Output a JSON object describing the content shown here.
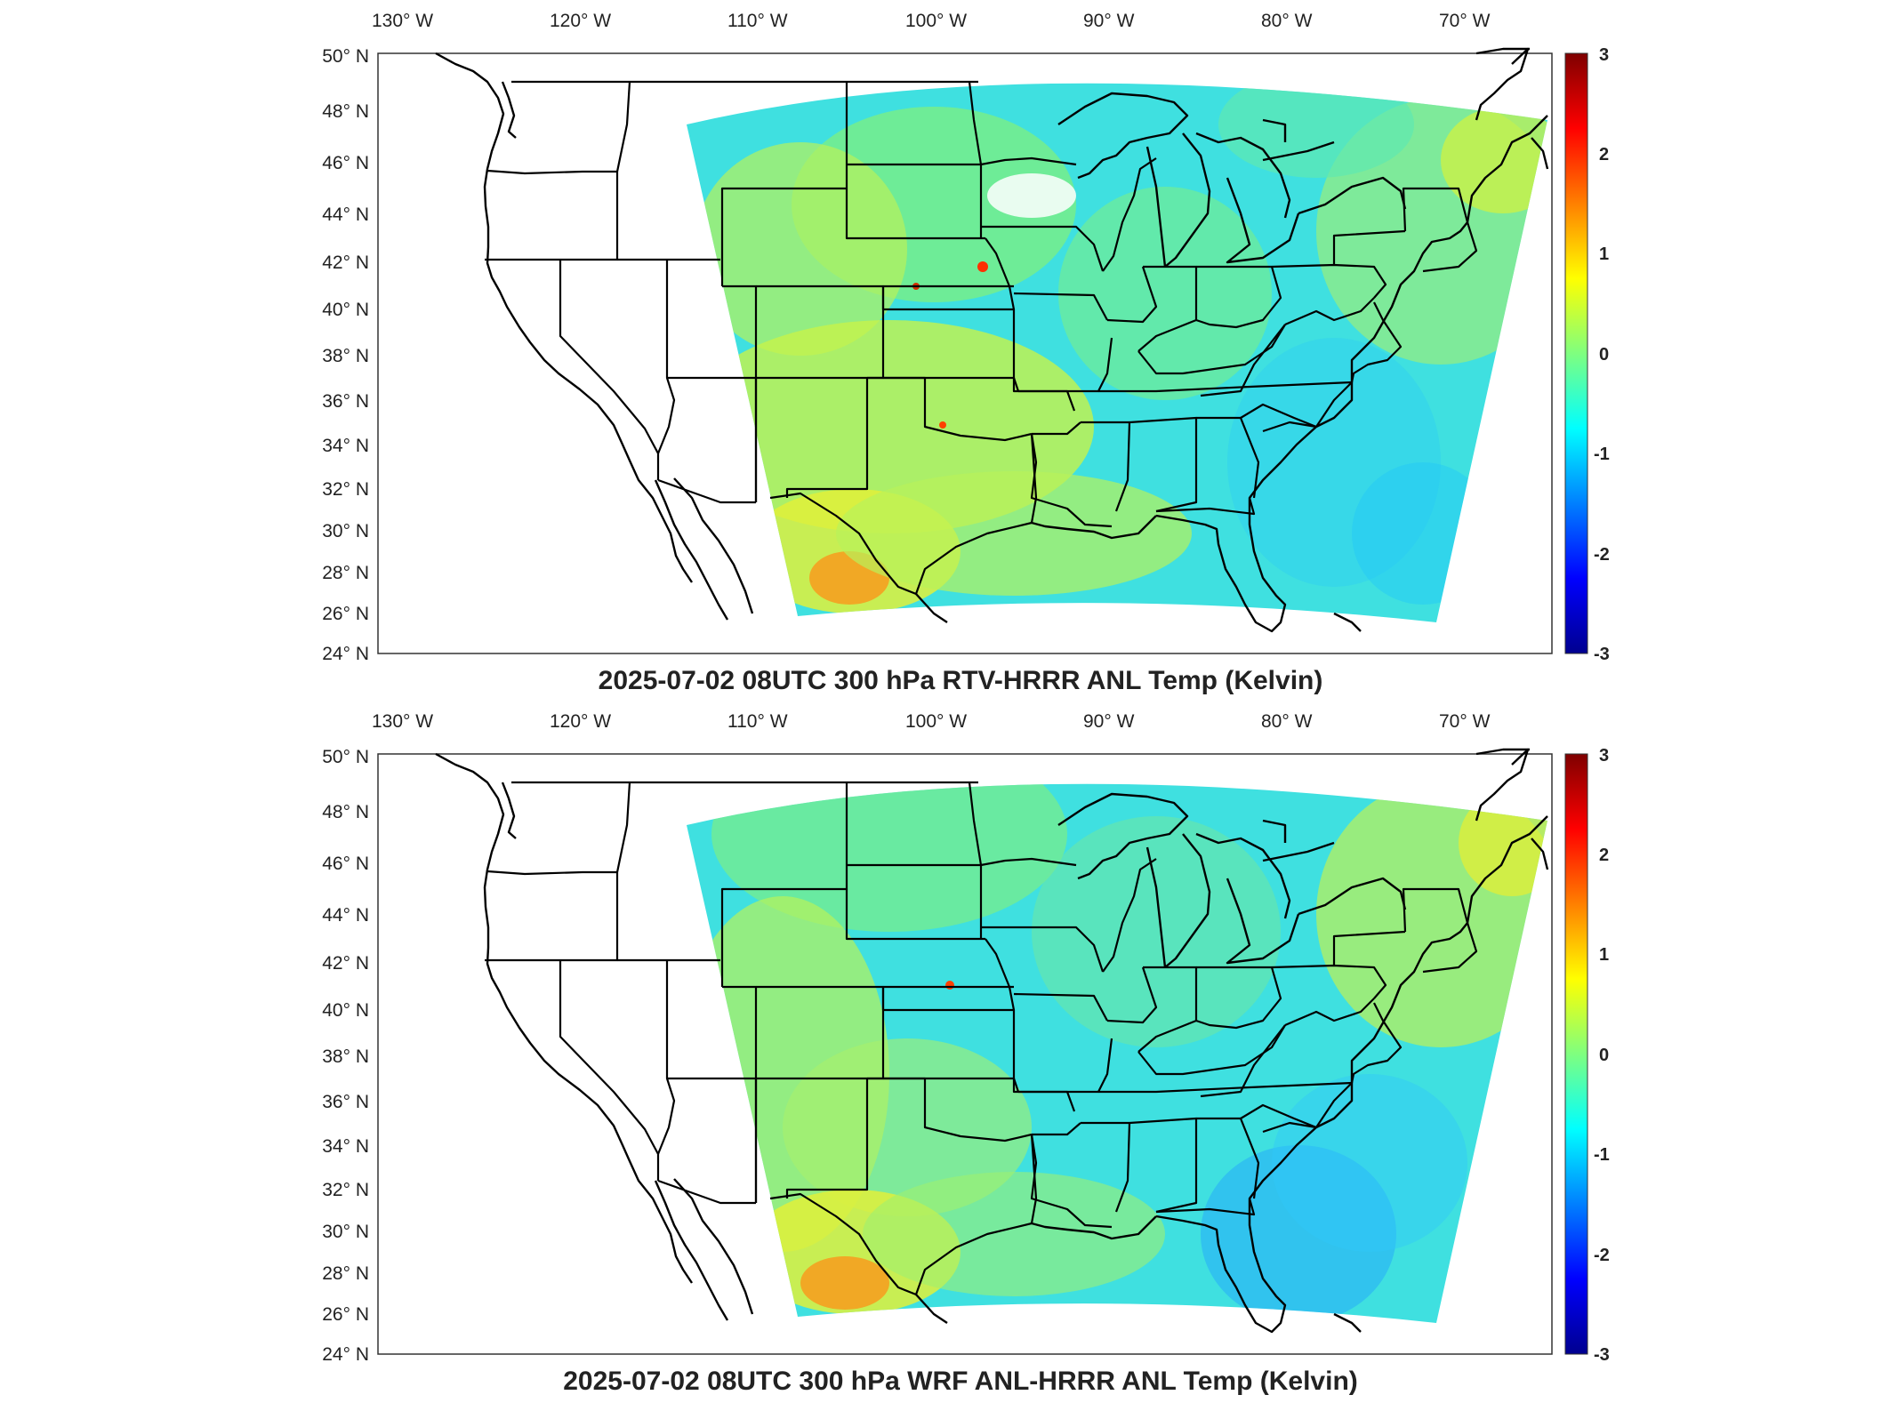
{
  "panels": [
    {
      "id": "top",
      "title": "2025-07-02 08UTC 300 hPa RTV-HRRR ANL Temp (Kelvin)",
      "lon_labels": [
        "130° W",
        "120° W",
        "110° W",
        "100° W",
        "90° W",
        "80° W",
        "70° W"
      ],
      "lat_labels": [
        "50° N",
        "48° N",
        "46° N",
        "44° N",
        "42° N",
        "40° N",
        "38° N",
        "36° N",
        "34° N",
        "32° N",
        "30° N",
        "28° N",
        "26° N",
        "24° N"
      ],
      "colorbar": {
        "ticks": [
          "3",
          "2",
          "1",
          "0",
          "-1",
          "-2",
          "-3"
        ]
      }
    },
    {
      "id": "bottom",
      "title": "2025-07-02 08UTC 300 hPa WRF ANL-HRRR ANL Temp (Kelvin)",
      "lon_labels": [
        "130° W",
        "120° W",
        "110° W",
        "100° W",
        "90° W",
        "80° W",
        "70° W"
      ],
      "lat_labels": [
        "50° N",
        "48° N",
        "46° N",
        "44° N",
        "42° N",
        "40° N",
        "38° N",
        "36° N",
        "34° N",
        "32° N",
        "30° N",
        "28° N",
        "26° N",
        "24° N"
      ],
      "colorbar": {
        "ticks": [
          "3",
          "2",
          "1",
          "0",
          "-1",
          "-2",
          "-3"
        ]
      }
    }
  ],
  "colorbar_scale": {
    "colormap": "jet",
    "min": -3,
    "max": 3,
    "colors": [
      "#00008f",
      "#0000ff",
      "#00ffff",
      "#7fff7f",
      "#ffff00",
      "#ff0000",
      "#7f0000"
    ]
  },
  "field_colors": {
    "background_cyan": "#3fe0e0",
    "greenish": "#7ff07f",
    "yellowish": "#d6f23a",
    "orange": "#f5a020",
    "blue_low": "#22a0ff"
  }
}
